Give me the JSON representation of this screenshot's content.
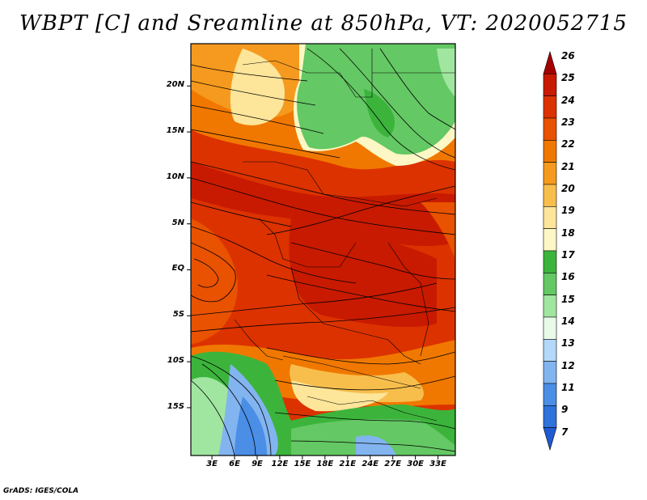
{
  "title": "WBPT [C] and Sreamline at 850hPa, VT: 2020052715",
  "footer": "GrADS: IGES/COLA",
  "lat_labels": [
    "20N",
    "15N",
    "10N",
    "5N",
    "EQ",
    "5S",
    "10S",
    "15S"
  ],
  "lat_values": [
    20,
    15,
    10,
    5,
    0,
    -5,
    -10,
    -15
  ],
  "lon_labels": [
    "3E",
    "6E",
    "9E",
    "12E",
    "15E",
    "18E",
    "21E",
    "24E",
    "27E",
    "30E",
    "33E"
  ],
  "lon_values": [
    3,
    6,
    9,
    12,
    15,
    18,
    21,
    24,
    27,
    30,
    33
  ],
  "colorbar": {
    "labels": [
      "26",
      "25",
      "24",
      "23",
      "22",
      "21",
      "20",
      "19",
      "18",
      "17",
      "16",
      "15",
      "14",
      "13",
      "12",
      "11",
      "9",
      "7"
    ],
    "colors": [
      "#a50000",
      "#c81a00",
      "#dc3200",
      "#e85200",
      "#f07800",
      "#f59a1e",
      "#f8be4c",
      "#fde59a",
      "#fcf7c4",
      "#3cb43c",
      "#64c864",
      "#a0e6a0",
      "#e8fae8",
      "#b4d8f8",
      "#82b4f0",
      "#4a8ee6",
      "#2e72dc",
      "#1e5ad2"
    ]
  }
}
